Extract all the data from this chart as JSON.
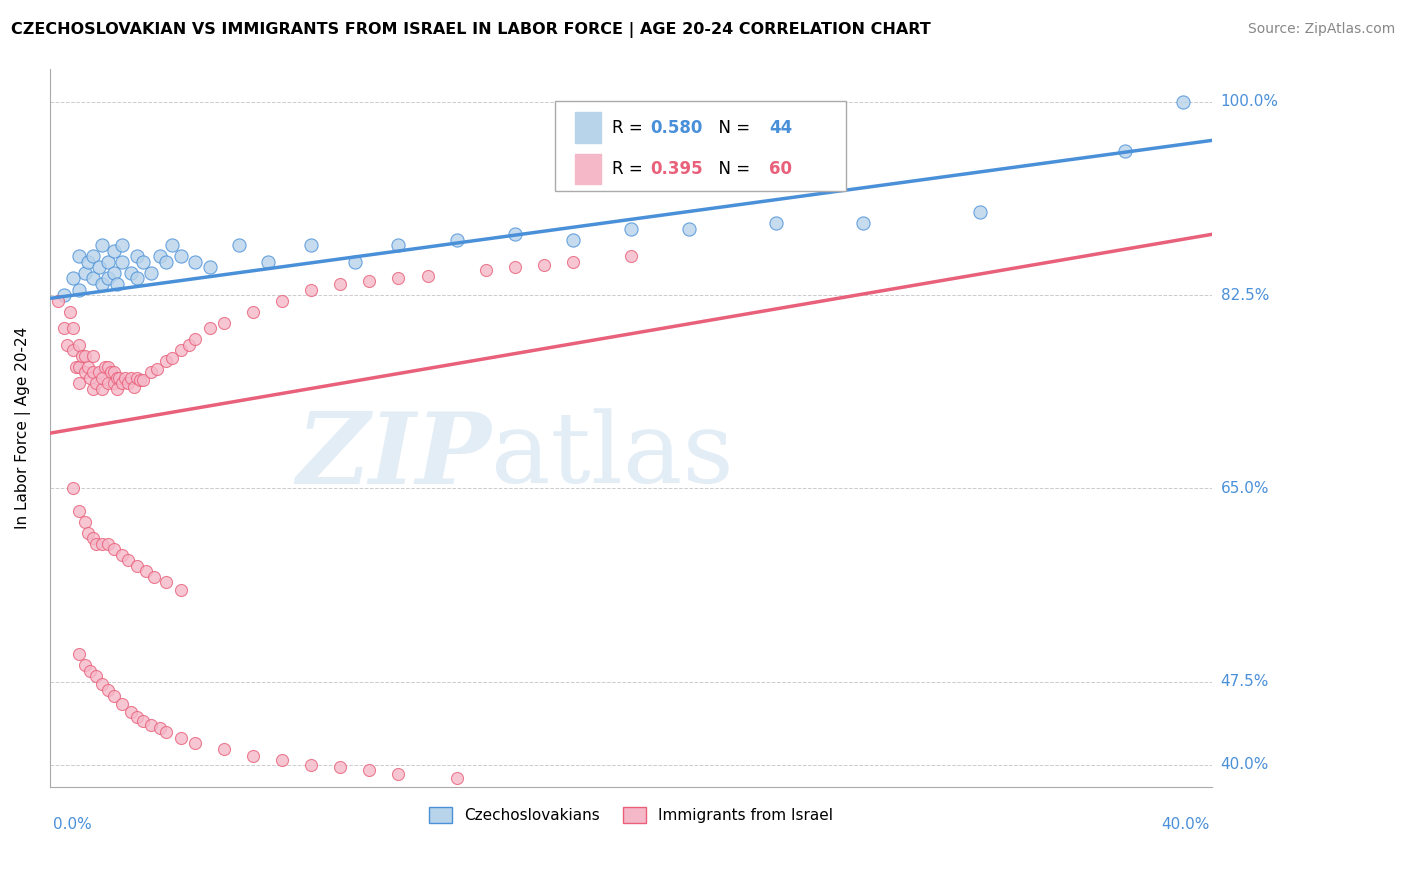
{
  "title": "CZECHOSLOVAKIAN VS IMMIGRANTS FROM ISRAEL IN LABOR FORCE | AGE 20-24 CORRELATION CHART",
  "source": "Source: ZipAtlas.com",
  "ylabel": "In Labor Force | Age 20-24",
  "xlim": [
    0.0,
    0.4
  ],
  "ylim": [
    0.38,
    1.03
  ],
  "blue_R": 0.58,
  "blue_N": 44,
  "pink_R": 0.395,
  "pink_N": 60,
  "blue_color": "#b8d4ea",
  "pink_color": "#f5b8c8",
  "blue_line_color": "#4a90d9",
  "pink_line_color": "#e8607a",
  "legend_label_blue": "Czechoslovakians",
  "legend_label_pink": "Immigrants from Israel",
  "background_color": "#ffffff",
  "blue_x": [
    0.005,
    0.008,
    0.01,
    0.01,
    0.012,
    0.013,
    0.015,
    0.015,
    0.017,
    0.018,
    0.018,
    0.02,
    0.02,
    0.022,
    0.022,
    0.023,
    0.025,
    0.025,
    0.028,
    0.03,
    0.03,
    0.032,
    0.035,
    0.038,
    0.04,
    0.042,
    0.045,
    0.05,
    0.055,
    0.065,
    0.075,
    0.09,
    0.105,
    0.12,
    0.14,
    0.16,
    0.18,
    0.2,
    0.22,
    0.25,
    0.28,
    0.32,
    0.37,
    0.39
  ],
  "blue_y": [
    0.825,
    0.84,
    0.83,
    0.86,
    0.845,
    0.855,
    0.84,
    0.86,
    0.85,
    0.835,
    0.87,
    0.84,
    0.855,
    0.845,
    0.865,
    0.835,
    0.855,
    0.87,
    0.845,
    0.84,
    0.86,
    0.855,
    0.845,
    0.86,
    0.855,
    0.87,
    0.86,
    0.855,
    0.85,
    0.87,
    0.855,
    0.87,
    0.855,
    0.87,
    0.875,
    0.88,
    0.875,
    0.885,
    0.885,
    0.89,
    0.89,
    0.9,
    0.955,
    1.0
  ],
  "pink_x": [
    0.003,
    0.005,
    0.006,
    0.007,
    0.008,
    0.008,
    0.009,
    0.01,
    0.01,
    0.01,
    0.011,
    0.012,
    0.012,
    0.013,
    0.014,
    0.015,
    0.015,
    0.015,
    0.016,
    0.017,
    0.018,
    0.018,
    0.019,
    0.02,
    0.02,
    0.021,
    0.022,
    0.022,
    0.023,
    0.023,
    0.024,
    0.025,
    0.026,
    0.027,
    0.028,
    0.029,
    0.03,
    0.031,
    0.032,
    0.035,
    0.037,
    0.04,
    0.042,
    0.045,
    0.048,
    0.05,
    0.055,
    0.06,
    0.07,
    0.08,
    0.09,
    0.1,
    0.11,
    0.12,
    0.13,
    0.15,
    0.16,
    0.17,
    0.18,
    0.2
  ],
  "pink_y": [
    0.82,
    0.795,
    0.78,
    0.81,
    0.775,
    0.795,
    0.76,
    0.78,
    0.76,
    0.745,
    0.77,
    0.755,
    0.77,
    0.76,
    0.75,
    0.74,
    0.755,
    0.77,
    0.745,
    0.755,
    0.74,
    0.75,
    0.76,
    0.745,
    0.76,
    0.755,
    0.745,
    0.755,
    0.75,
    0.74,
    0.75,
    0.745,
    0.75,
    0.745,
    0.75,
    0.742,
    0.75,
    0.748,
    0.748,
    0.755,
    0.758,
    0.765,
    0.768,
    0.775,
    0.78,
    0.785,
    0.795,
    0.8,
    0.81,
    0.82,
    0.83,
    0.835,
    0.838,
    0.84,
    0.842,
    0.848,
    0.85,
    0.852,
    0.855,
    0.86
  ],
  "pink_low_x": [
    0.008,
    0.01,
    0.012,
    0.013,
    0.015,
    0.016,
    0.018,
    0.02,
    0.022,
    0.025,
    0.027,
    0.03,
    0.033,
    0.036,
    0.04,
    0.045
  ],
  "pink_low_y": [
    0.65,
    0.63,
    0.62,
    0.61,
    0.605,
    0.6,
    0.6,
    0.6,
    0.595,
    0.59,
    0.585,
    0.58,
    0.575,
    0.57,
    0.565,
    0.558
  ],
  "pink_vlow_x": [
    0.01,
    0.012,
    0.014,
    0.016,
    0.018,
    0.02,
    0.022,
    0.025,
    0.028,
    0.03,
    0.032,
    0.035,
    0.038,
    0.04,
    0.045,
    0.05,
    0.06,
    0.07,
    0.08,
    0.09,
    0.1,
    0.11,
    0.12,
    0.14
  ],
  "pink_vlow_y": [
    0.5,
    0.49,
    0.485,
    0.48,
    0.473,
    0.468,
    0.462,
    0.455,
    0.448,
    0.443,
    0.44,
    0.436,
    0.433,
    0.43,
    0.424,
    0.42,
    0.414,
    0.408,
    0.404,
    0.4,
    0.398,
    0.395,
    0.392,
    0.388
  ]
}
